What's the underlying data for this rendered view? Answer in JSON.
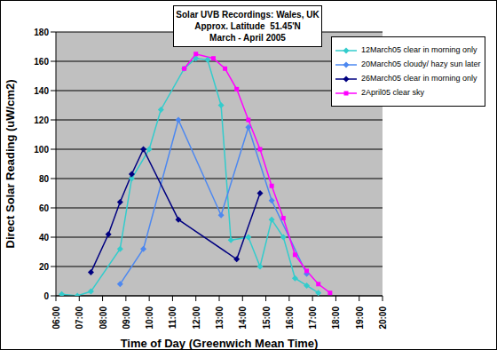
{
  "chart_data": {
    "type": "line",
    "title": [
      "Solar UVB Recordings: Wales, UK",
      "Approx. Latitude  51.45'N",
      "March - April 2005"
    ],
    "x_label": "Time of Day (Greenwich Mean Time)",
    "y_label": "Direct Solar Reading (uW/cm2)",
    "xlim": [
      6,
      20
    ],
    "xticks": [
      {
        "value": 6,
        "label": "06:00"
      },
      {
        "value": 7,
        "label": "07:00"
      },
      {
        "value": 8,
        "label": "08:00"
      },
      {
        "value": 9,
        "label": "09:00"
      },
      {
        "value": 10,
        "label": "10:00"
      },
      {
        "value": 11,
        "label": "11:00"
      },
      {
        "value": 12,
        "label": "12:00"
      },
      {
        "value": 13,
        "label": "13:00"
      },
      {
        "value": 14,
        "label": "14:00"
      },
      {
        "value": 15,
        "label": "15:00"
      },
      {
        "value": 16,
        "label": "16:00"
      },
      {
        "value": 17,
        "label": "17:00"
      },
      {
        "value": 18,
        "label": "18:00"
      },
      {
        "value": 19,
        "label": "19:00"
      },
      {
        "value": 20,
        "label": "20:00"
      }
    ],
    "ylim": [
      0,
      180
    ],
    "yticks": [
      0,
      20,
      40,
      60,
      80,
      100,
      120,
      140,
      160,
      180
    ],
    "grid": true,
    "legend": "right",
    "series": [
      {
        "name": "12March05 clear in morning only",
        "color": "#33cccc",
        "marker": "diamond",
        "x": [
          6.25,
          6.92,
          7.5,
          8.75,
          9.25,
          10,
          10.5,
          11.5,
          12,
          12.5,
          13.08,
          13.5,
          14.25,
          14.75,
          15.25,
          15.75,
          16.25,
          16.75,
          17.25
        ],
        "values": [
          1,
          0,
          3,
          32,
          80,
          100,
          127,
          155,
          162,
          161,
          130,
          38,
          40,
          20,
          52,
          40,
          12,
          7,
          2
        ]
      },
      {
        "name": "20March05 cloudy/ hazy sun later",
        "color": "#4d88f0",
        "marker": "diamond",
        "x": [
          8.75,
          9.75,
          11.25,
          13.08,
          14.25,
          15.25,
          16.75
        ],
        "values": [
          8,
          32,
          120,
          55,
          115,
          65,
          15
        ]
      },
      {
        "name": "26March05 clear in morning only",
        "color": "#000080",
        "marker": "diamond",
        "x": [
          7.5,
          8.25,
          8.75,
          9.25,
          9.75,
          11.25,
          13.75,
          14.75
        ],
        "values": [
          16,
          42,
          64,
          83,
          100,
          52,
          25,
          70
        ]
      },
      {
        "name": "2April05 clear sky",
        "color": "#ff00ff",
        "marker": "square",
        "x": [
          11.5,
          12,
          12.75,
          13.25,
          13.75,
          14.25,
          14.75,
          15.25,
          15.75,
          16.25,
          16.75,
          17.25,
          17.75
        ],
        "values": [
          155,
          165,
          162,
          155,
          141,
          120,
          100,
          75,
          53,
          28,
          17,
          8,
          2
        ]
      }
    ]
  }
}
